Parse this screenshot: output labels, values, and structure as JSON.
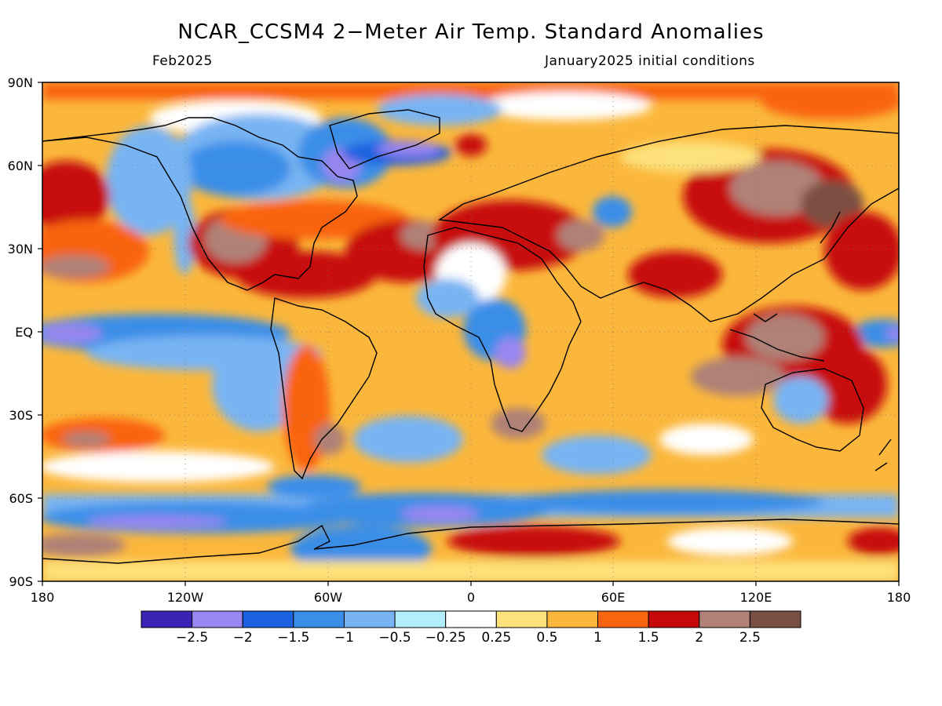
{
  "title": "NCAR_CCSM4 2−Meter Air Temp. Standard Anomalies",
  "subtitle_left": "Feb2025",
  "subtitle_right": "January2025 initial conditions",
  "lat_ticks": [
    "90N",
    "60N",
    "30N",
    "EQ",
    "30S",
    "60S",
    "90S"
  ],
  "lon_ticks": [
    "180",
    "120W",
    "60W",
    "0",
    "60E",
    "120E",
    "180"
  ],
  "colorbar": {
    "labels": [
      "−2.5",
      "−2",
      "−1.5",
      "−1",
      "−0.5",
      "−0.25",
      "0.25",
      "0.5",
      "1",
      "1.5",
      "2",
      "2.5"
    ],
    "colors": [
      "#3b23b5",
      "#9a86f0",
      "#1c62e0",
      "#3a8ee8",
      "#78b4f3",
      "#b3eefc",
      "#ffffff",
      "#fde17c",
      "#fbb73b",
      "#f9640e",
      "#c70808",
      "#af8177",
      "#7a4f43"
    ]
  },
  "palette": {
    "base": "#fbb73b",
    "land_outline": "#000000"
  }
}
